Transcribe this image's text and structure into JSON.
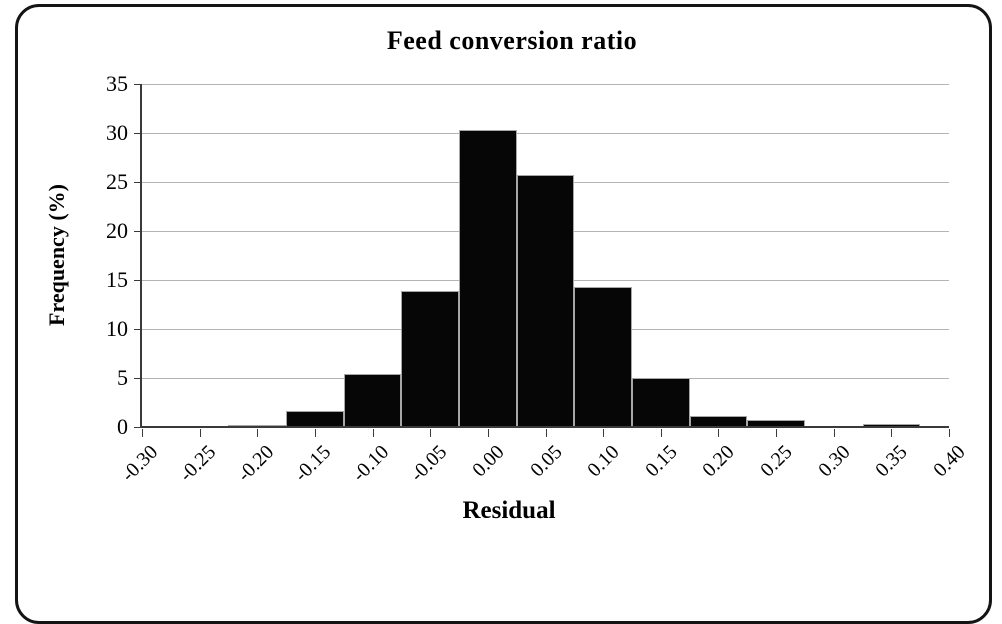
{
  "figure": {
    "title": "Feed conversion ratio",
    "xlabel": "Residual",
    "ylabel": "Frequency (%)"
  },
  "chart_data": {
    "type": "bar",
    "title": "Feed conversion ratio",
    "xlabel": "Residual",
    "ylabel": "Frequency (%)",
    "categories": [
      "-0.30",
      "-0.25",
      "-0.20",
      "-0.15",
      "-0.10",
      "-0.05",
      "0.00",
      "0.05",
      "0.10",
      "0.15",
      "0.20",
      "0.25",
      "0.30",
      "0.35",
      "0.40"
    ],
    "values": [
      0,
      0,
      0.2,
      1.6,
      5.4,
      13.9,
      30.3,
      25.7,
      14.3,
      5.0,
      1.1,
      0.7,
      0,
      0.3,
      0
    ],
    "ylim": [
      0,
      35
    ],
    "yticks": [
      0,
      5,
      10,
      15,
      20,
      25,
      30,
      35
    ],
    "grid": true,
    "legend": "none",
    "bar_color": "#060606",
    "bar_border_color": "#a6a6a6",
    "gridline_color": "#b4b4b4",
    "axis_color": "#3a3a3a"
  }
}
